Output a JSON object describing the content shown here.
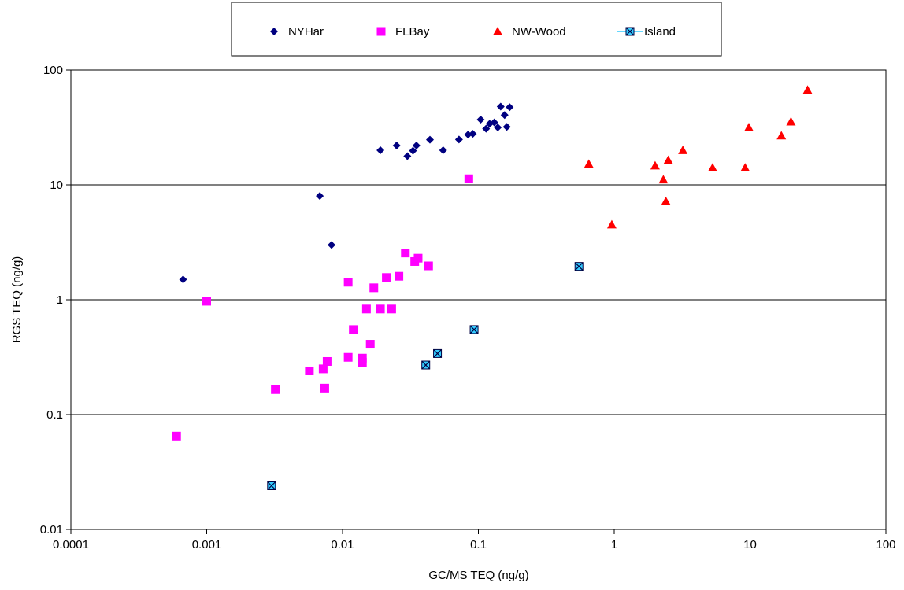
{
  "chart_data": {
    "type": "scatter",
    "xlabel": "GC/MS TEQ (ng/g)",
    "ylabel": "RGS TEQ (ng/g)",
    "x_scale": "log",
    "y_scale": "log",
    "xlim": [
      0.0001,
      100
    ],
    "ylim": [
      0.01,
      100
    ],
    "x_ticks": [
      {
        "value": 0.0001,
        "label": "0.0001"
      },
      {
        "value": 0.001,
        "label": "0.001"
      },
      {
        "value": 0.01,
        "label": "0.01"
      },
      {
        "value": 0.1,
        "label": "0.1"
      },
      {
        "value": 1,
        "label": "1"
      },
      {
        "value": 10,
        "label": "10"
      },
      {
        "value": 100,
        "label": "100"
      }
    ],
    "y_ticks": [
      {
        "value": 0.01,
        "label": "0.01"
      },
      {
        "value": 0.1,
        "label": "0.1"
      },
      {
        "value": 1,
        "label": "1"
      },
      {
        "value": 10,
        "label": "10"
      },
      {
        "value": 100,
        "label": "100"
      }
    ],
    "grid": "horizontal",
    "legend_position": "top",
    "series": [
      {
        "name": "NYHar",
        "marker": "diamond",
        "color": "#000080",
        "points": [
          [
            0.00067,
            1.5
          ],
          [
            0.0068,
            8.0
          ],
          [
            0.0083,
            3.0
          ],
          [
            0.019,
            20
          ],
          [
            0.025,
            22
          ],
          [
            0.03,
            17.8
          ],
          [
            0.033,
            19.8
          ],
          [
            0.035,
            22
          ],
          [
            0.044,
            24.7
          ],
          [
            0.055,
            20
          ],
          [
            0.072,
            24.8
          ],
          [
            0.084,
            27.4
          ],
          [
            0.091,
            27.8
          ],
          [
            0.104,
            37
          ],
          [
            0.114,
            30.8
          ],
          [
            0.121,
            34
          ],
          [
            0.131,
            35
          ],
          [
            0.139,
            31.6
          ],
          [
            0.146,
            48
          ],
          [
            0.156,
            40.5
          ],
          [
            0.162,
            32
          ],
          [
            0.17,
            47.5
          ]
        ]
      },
      {
        "name": "FLBay",
        "marker": "square",
        "color": "#FF00FF",
        "points": [
          [
            0.0006,
            0.065
          ],
          [
            0.001,
            0.97
          ],
          [
            0.0032,
            0.165
          ],
          [
            0.0057,
            0.24
          ],
          [
            0.0072,
            0.25
          ],
          [
            0.0074,
            0.17
          ],
          [
            0.0077,
            0.29
          ],
          [
            0.011,
            0.315
          ],
          [
            0.011,
            1.42
          ],
          [
            0.012,
            0.55
          ],
          [
            0.014,
            0.31
          ],
          [
            0.014,
            0.285
          ],
          [
            0.015,
            0.83
          ],
          [
            0.016,
            0.41
          ],
          [
            0.017,
            1.27
          ],
          [
            0.019,
            0.83
          ],
          [
            0.021,
            1.56
          ],
          [
            0.023,
            0.83
          ],
          [
            0.026,
            1.6
          ],
          [
            0.029,
            2.55
          ],
          [
            0.034,
            2.15
          ],
          [
            0.036,
            2.3
          ],
          [
            0.043,
            1.97
          ],
          [
            0.085,
            11.3
          ]
        ]
      },
      {
        "name": "NW-Wood",
        "marker": "triangle",
        "color": "#FF0000",
        "points": [
          [
            0.65,
            15.2
          ],
          [
            0.96,
            4.5
          ],
          [
            2.0,
            14.7
          ],
          [
            2.3,
            11.1
          ],
          [
            2.4,
            7.2
          ],
          [
            2.5,
            16.4
          ],
          [
            3.2,
            20
          ],
          [
            5.3,
            14.1
          ],
          [
            9.2,
            14.1
          ],
          [
            9.8,
            31.6
          ],
          [
            17,
            26.8
          ],
          [
            20,
            35.5
          ],
          [
            26.5,
            67
          ]
        ]
      },
      {
        "name": "Island",
        "marker": "boxed-x",
        "color": "#33CCFF",
        "points": [
          [
            0.003,
            0.024
          ],
          [
            0.041,
            0.27
          ],
          [
            0.05,
            0.34
          ],
          [
            0.093,
            0.55
          ],
          [
            0.55,
            1.95
          ]
        ]
      }
    ]
  }
}
